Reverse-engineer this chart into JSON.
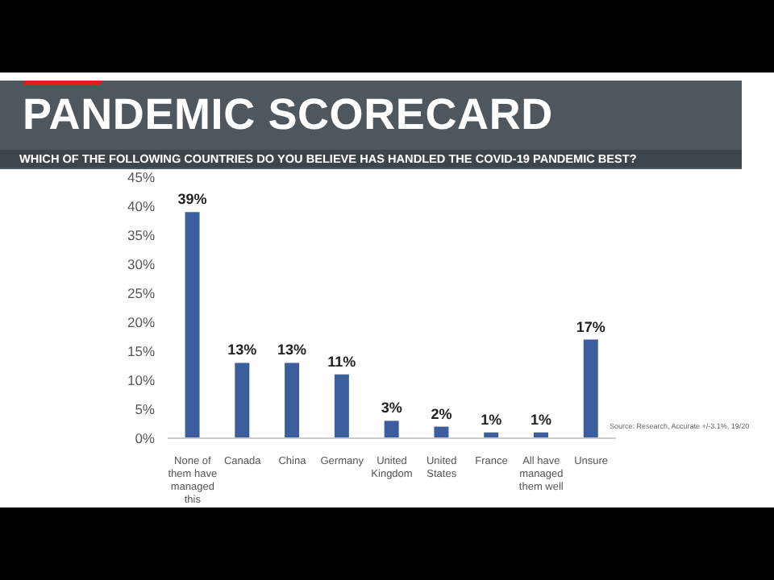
{
  "chart_data": {
    "type": "bar",
    "title": "PANDEMIC SCORECARD",
    "subtitle": "WHICH OF THE FOLLOWING COUNTRIES DO YOU BELIEVE HAS HANDLED THE COVID-19 PANDEMIC BEST?",
    "categories": [
      "None of them have managed this",
      "Canada",
      "China",
      "Germany",
      "United Kingdom",
      "United States",
      "France",
      "All have managed them well",
      "Unsure"
    ],
    "values": [
      39,
      13,
      13,
      11,
      3,
      2,
      1,
      1,
      17
    ],
    "value_labels": [
      "39%",
      "13%",
      "13%",
      "11%",
      "3%",
      "2%",
      "1%",
      "1%",
      "17%"
    ],
    "color": "#3d5e9c",
    "ylim": [
      0,
      45
    ],
    "yticks": [
      {
        "value": 0,
        "label": "0%"
      },
      {
        "value": 5,
        "label": "5%"
      },
      {
        "value": 10,
        "label": "10%"
      },
      {
        "value": 15,
        "label": "15%"
      },
      {
        "value": 20,
        "label": "20%"
      },
      {
        "value": 25,
        "label": "25%"
      },
      {
        "value": 30,
        "label": "30%"
      },
      {
        "value": 35,
        "label": "35%"
      },
      {
        "value": 40,
        "label": "40%"
      },
      {
        "value": 45,
        "label": "45%"
      }
    ],
    "grid": false,
    "annotations": [
      "Source: Research, Accurate +/-3.1%, 19/20"
    ]
  }
}
